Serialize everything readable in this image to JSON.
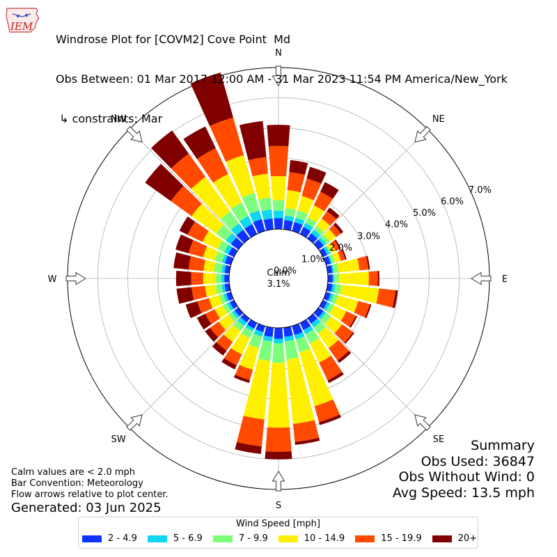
{
  "header": {
    "logo_text": "IEM",
    "title": "Windrose Plot for [COVM2] Cove Point  Md",
    "obs_between": "Obs Between: 01 Mar 2017 12:00 AM - 31 Mar 2023 11:54 PM America/New_York",
    "constraints": " ↳ constraints: Mar"
  },
  "notes": {
    "calm_note": "Calm values are < 2.0 mph",
    "bar_convention": "Bar Convention: Meteorology",
    "flow_arrows": "Flow arrows relative to plot center.",
    "generated": "Generated: 03 Jun 2025"
  },
  "summary": {
    "title": "Summary",
    "obs_used": "Obs Used: 36847",
    "obs_without_wind": "Obs Without Wind: 0",
    "avg_speed": "Avg Speed: 13.5 mph"
  },
  "legend": {
    "title": "Wind Speed [mph]"
  },
  "chart_data": {
    "type": "windrose",
    "calm_label": "Calm",
    "calm_value": "3.1%",
    "radial_tick_labels": [
      "0.0%",
      "1.0%",
      "2.0%",
      "3.0%",
      "4.0%",
      "5.0%",
      "6.0%",
      "7.0%"
    ],
    "radial_range_percent": [
      0,
      7.0
    ],
    "calm_radius_percent": 1.64,
    "grid": true,
    "legend_placement": "bottom-center",
    "directions": [
      "N",
      "NE",
      "E",
      "SE",
      "S",
      "SW",
      "W",
      "NW"
    ],
    "speed_bins": [
      {
        "label": "2 - 4.9",
        "color": "#0f33ff"
      },
      {
        "label": "5 - 6.9",
        "color": "#0fd6f1"
      },
      {
        "label": "7 - 9.9",
        "color": "#7dff7d"
      },
      {
        "label": "10 - 14.9",
        "color": "#fff000"
      },
      {
        "label": "15 - 19.9",
        "color": "#ff4a00"
      },
      {
        "label": "20+",
        "color": "#800000"
      }
    ],
    "sectors": [
      {
        "dir_deg": 0,
        "cumulative_percent": [
          2.0,
          2.25,
          2.6,
          3.4,
          4.4,
          5.1
        ]
      },
      {
        "dir_deg": 10,
        "cumulative_percent": [
          1.95,
          2.1,
          2.35,
          2.95,
          3.55,
          3.95
        ]
      },
      {
        "dir_deg": 20,
        "cumulative_percent": [
          1.95,
          2.1,
          2.35,
          2.85,
          3.45,
          3.85
        ]
      },
      {
        "dir_deg": 30,
        "cumulative_percent": [
          1.9,
          2.05,
          2.25,
          2.7,
          3.2,
          3.55
        ]
      },
      {
        "dir_deg": 40,
        "cumulative_percent": [
          1.85,
          2.0,
          2.15,
          2.45,
          2.75,
          2.9
        ]
      },
      {
        "dir_deg": 50,
        "cumulative_percent": [
          1.85,
          1.95,
          2.1,
          2.35,
          2.55,
          2.65
        ]
      },
      {
        "dir_deg": 60,
        "cumulative_percent": [
          1.8,
          1.9,
          1.95,
          2.1,
          2.25,
          2.3
        ]
      },
      {
        "dir_deg": 70,
        "cumulative_percent": [
          1.8,
          1.85,
          1.95,
          2.15,
          2.3,
          2.35
        ]
      },
      {
        "dir_deg": 80,
        "cumulative_percent": [
          1.8,
          1.85,
          2.0,
          2.7,
          3.0,
          3.05
        ]
      },
      {
        "dir_deg": 90,
        "cumulative_percent": [
          1.8,
          1.85,
          2.0,
          3.0,
          3.3,
          3.35
        ]
      },
      {
        "dir_deg": 100,
        "cumulative_percent": [
          1.8,
          1.9,
          2.1,
          3.35,
          3.9,
          3.98
        ]
      },
      {
        "dir_deg": 110,
        "cumulative_percent": [
          1.8,
          1.9,
          2.05,
          2.75,
          3.15,
          3.2
        ]
      },
      {
        "dir_deg": 120,
        "cumulative_percent": [
          1.8,
          1.9,
          2.05,
          2.5,
          2.85,
          2.9
        ]
      },
      {
        "dir_deg": 130,
        "cumulative_percent": [
          1.85,
          1.95,
          2.15,
          2.6,
          3.05,
          3.1
        ]
      },
      {
        "dir_deg": 140,
        "cumulative_percent": [
          1.85,
          2.0,
          2.25,
          2.85,
          3.35,
          3.45
        ]
      },
      {
        "dir_deg": 150,
        "cumulative_percent": [
          1.9,
          2.05,
          2.4,
          3.1,
          3.75,
          3.85
        ]
      },
      {
        "dir_deg": 160,
        "cumulative_percent": [
          1.95,
          2.1,
          2.55,
          4.4,
          4.95,
          5.05
        ]
      },
      {
        "dir_deg": 170,
        "cumulative_percent": [
          1.95,
          2.1,
          2.7,
          4.85,
          5.45,
          5.55
        ]
      },
      {
        "dir_deg": 180,
        "cumulative_percent": [
          2.0,
          2.15,
          2.8,
          4.95,
          5.75,
          6.0
        ]
      },
      {
        "dir_deg": 190,
        "cumulative_percent": [
          1.95,
          2.1,
          2.75,
          4.7,
          5.6,
          5.85
        ]
      },
      {
        "dir_deg": 200,
        "cumulative_percent": [
          1.85,
          2.0,
          2.4,
          3.15,
          3.5,
          3.6
        ]
      },
      {
        "dir_deg": 210,
        "cumulative_percent": [
          1.85,
          1.95,
          2.2,
          2.8,
          3.2,
          3.35
        ]
      },
      {
        "dir_deg": 220,
        "cumulative_percent": [
          1.8,
          1.95,
          2.15,
          2.6,
          2.95,
          3.15
        ]
      },
      {
        "dir_deg": 230,
        "cumulative_percent": [
          1.8,
          1.9,
          2.05,
          2.45,
          2.8,
          3.0
        ]
      },
      {
        "dir_deg": 240,
        "cumulative_percent": [
          1.8,
          1.9,
          2.05,
          2.35,
          2.7,
          3.0
        ]
      },
      {
        "dir_deg": 250,
        "cumulative_percent": [
          1.8,
          1.9,
          2.05,
          2.4,
          2.8,
          3.2
        ]
      },
      {
        "dir_deg": 260,
        "cumulative_percent": [
          1.8,
          1.9,
          2.1,
          2.45,
          2.9,
          3.4
        ]
      },
      {
        "dir_deg": 270,
        "cumulative_percent": [
          1.8,
          1.9,
          2.1,
          2.5,
          2.9,
          3.4
        ]
      },
      {
        "dir_deg": 280,
        "cumulative_percent": [
          1.8,
          1.9,
          2.15,
          2.5,
          3.0,
          3.5
        ]
      },
      {
        "dir_deg": 290,
        "cumulative_percent": [
          1.85,
          1.95,
          2.2,
          2.6,
          3.1,
          3.55
        ]
      },
      {
        "dir_deg": 300,
        "cumulative_percent": [
          1.85,
          2.0,
          2.25,
          2.8,
          3.35,
          3.65
        ]
      },
      {
        "dir_deg": 310,
        "cumulative_percent": [
          1.95,
          2.15,
          2.55,
          3.55,
          4.4,
          5.45
        ]
      },
      {
        "dir_deg": 320,
        "cumulative_percent": [
          2.0,
          2.25,
          2.75,
          4.15,
          5.1,
          6.05
        ]
      },
      {
        "dir_deg": 330,
        "cumulative_percent": [
          2.0,
          2.3,
          2.8,
          3.85,
          4.8,
          5.6
        ]
      },
      {
        "dir_deg": 340,
        "cumulative_percent": [
          2.05,
          2.35,
          2.95,
          4.25,
          5.55,
          7.1
        ]
      },
      {
        "dir_deg": 350,
        "cumulative_percent": [
          2.0,
          2.3,
          2.7,
          3.5,
          4.05,
          5.25
        ]
      }
    ]
  }
}
